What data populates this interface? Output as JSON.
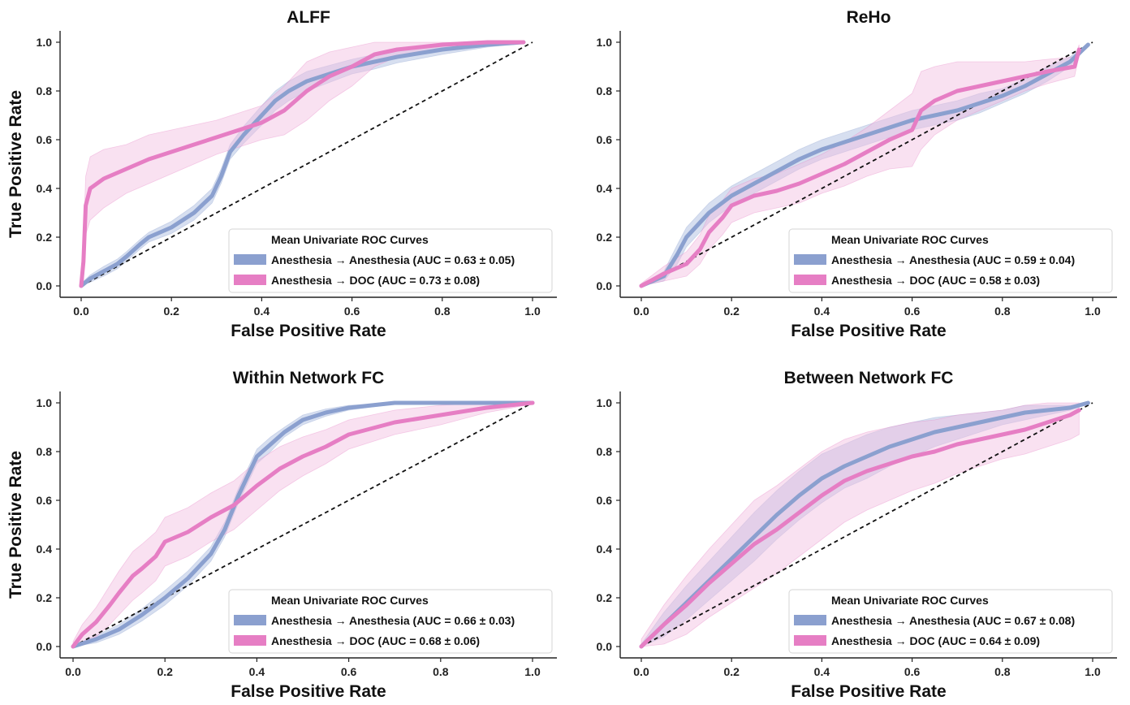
{
  "colors": {
    "anesthesia": "#8ba0cf",
    "anesthesia_band": "#b7c4e3",
    "doc": "#e67ec4",
    "doc_band": "#f2bde0",
    "diagonal": "#111111"
  },
  "chart_data": [
    {
      "type": "line",
      "title": "ALFF",
      "xlabel": "False Positive Rate",
      "ylabel": "True Positive Rate",
      "xlim": [
        0,
        1
      ],
      "ylim": [
        0,
        1
      ],
      "xticks": [
        "0.0",
        "0.2",
        "0.4",
        "0.6",
        "0.8",
        "1.0"
      ],
      "yticks": [
        "0.0",
        "0.2",
        "0.4",
        "0.6",
        "0.8",
        "1.0"
      ],
      "legend": {
        "title": "Mean Univariate ROC Curves",
        "placement": "lower-right"
      },
      "diagonal": true,
      "series": [
        {
          "name": "Anesthesia → Anesthesia (AUC = 0.63 ± 0.05)",
          "color_key": "anesthesia",
          "x": [
            0,
            0.02,
            0.05,
            0.08,
            0.1,
            0.13,
            0.15,
            0.2,
            0.25,
            0.29,
            0.31,
            0.33,
            0.36,
            0.4,
            0.43,
            0.46,
            0.5,
            0.55,
            0.6,
            0.65,
            0.7,
            0.8,
            0.9,
            0.98
          ],
          "y": [
            0,
            0.03,
            0.06,
            0.09,
            0.12,
            0.17,
            0.2,
            0.24,
            0.3,
            0.37,
            0.45,
            0.55,
            0.62,
            0.7,
            0.76,
            0.8,
            0.84,
            0.87,
            0.9,
            0.92,
            0.94,
            0.97,
            0.99,
            1.0
          ],
          "band": [
            0.01,
            0.015,
            0.02,
            0.02,
            0.02,
            0.02,
            0.02,
            0.025,
            0.03,
            0.03,
            0.03,
            0.03,
            0.035,
            0.04,
            0.04,
            0.04,
            0.04,
            0.035,
            0.03,
            0.03,
            0.025,
            0.02,
            0.01,
            0.005
          ]
        },
        {
          "name": "Anesthesia → DOC (AUC = 0.73 ± 0.08)",
          "color_key": "doc",
          "x": [
            0,
            0.005,
            0.01,
            0.02,
            0.05,
            0.1,
            0.15,
            0.2,
            0.25,
            0.3,
            0.35,
            0.4,
            0.45,
            0.5,
            0.55,
            0.6,
            0.65,
            0.7,
            0.8,
            0.9,
            0.98
          ],
          "y": [
            0,
            0.1,
            0.33,
            0.4,
            0.44,
            0.48,
            0.52,
            0.55,
            0.58,
            0.61,
            0.64,
            0.67,
            0.72,
            0.8,
            0.86,
            0.9,
            0.95,
            0.97,
            0.99,
            1.0,
            1.0
          ],
          "band": [
            0.02,
            0.08,
            0.12,
            0.13,
            0.12,
            0.1,
            0.1,
            0.09,
            0.08,
            0.07,
            0.07,
            0.07,
            0.1,
            0.12,
            0.1,
            0.08,
            0.05,
            0.03,
            0.02,
            0.01,
            0.005
          ]
        }
      ]
    },
    {
      "type": "line",
      "title": "ReHo",
      "xlabel": "False Positive Rate",
      "ylabel": "",
      "xlim": [
        0,
        1
      ],
      "ylim": [
        0,
        1
      ],
      "xticks": [
        "0.0",
        "0.2",
        "0.4",
        "0.6",
        "0.8",
        "1.0"
      ],
      "yticks": [
        "0.0",
        "0.2",
        "0.4",
        "0.6",
        "0.8",
        "1.0"
      ],
      "legend": {
        "title": "Mean Univariate ROC Curves",
        "placement": "lower-right"
      },
      "diagonal": true,
      "series": [
        {
          "name": "Anesthesia → Anesthesia (AUC = 0.59 ± 0.04)",
          "color_key": "anesthesia",
          "x": [
            0,
            0.05,
            0.08,
            0.1,
            0.15,
            0.2,
            0.25,
            0.3,
            0.35,
            0.4,
            0.45,
            0.5,
            0.55,
            0.6,
            0.65,
            0.7,
            0.75,
            0.8,
            0.85,
            0.9,
            0.95,
            0.99
          ],
          "y": [
            0,
            0.04,
            0.13,
            0.2,
            0.3,
            0.37,
            0.42,
            0.47,
            0.52,
            0.56,
            0.59,
            0.62,
            0.65,
            0.68,
            0.7,
            0.72,
            0.75,
            0.78,
            0.82,
            0.87,
            0.92,
            0.99
          ],
          "band": [
            0.005,
            0.02,
            0.04,
            0.04,
            0.04,
            0.04,
            0.04,
            0.04,
            0.04,
            0.04,
            0.04,
            0.04,
            0.04,
            0.04,
            0.04,
            0.04,
            0.04,
            0.03,
            0.03,
            0.03,
            0.02,
            0.005
          ]
        },
        {
          "name": "Anesthesia → DOC (AUC = 0.58 ± 0.03)",
          "color_key": "doc",
          "x": [
            0,
            0.05,
            0.1,
            0.13,
            0.15,
            0.18,
            0.2,
            0.25,
            0.3,
            0.35,
            0.4,
            0.45,
            0.5,
            0.55,
            0.6,
            0.62,
            0.65,
            0.7,
            0.75,
            0.8,
            0.85,
            0.9,
            0.96,
            0.97
          ],
          "y": [
            0,
            0.05,
            0.09,
            0.15,
            0.22,
            0.28,
            0.33,
            0.37,
            0.39,
            0.42,
            0.46,
            0.5,
            0.55,
            0.6,
            0.64,
            0.72,
            0.76,
            0.8,
            0.82,
            0.84,
            0.86,
            0.88,
            0.9,
            0.97
          ],
          "band": [
            0.01,
            0.03,
            0.05,
            0.06,
            0.07,
            0.07,
            0.07,
            0.07,
            0.07,
            0.08,
            0.08,
            0.09,
            0.1,
            0.12,
            0.15,
            0.16,
            0.14,
            0.12,
            0.1,
            0.08,
            0.06,
            0.05,
            0.04,
            0.02
          ]
        }
      ]
    },
    {
      "type": "line",
      "title": "Within Network FC",
      "xlabel": "False Positive Rate",
      "ylabel": "True Positive Rate",
      "xlim": [
        0,
        1
      ],
      "ylim": [
        0,
        1
      ],
      "xticks": [
        "0.0",
        "0.2",
        "0.4",
        "0.6",
        "0.8",
        "1.0"
      ],
      "yticks": [
        "0.0",
        "0.2",
        "0.4",
        "0.6",
        "0.8",
        "1.0"
      ],
      "legend": {
        "title": "Mean Univariate ROC Curves",
        "placement": "lower-right"
      },
      "diagonal": true,
      "series": [
        {
          "name": "Anesthesia → Anesthesia (AUC = 0.66 ± 0.03)",
          "color_key": "anesthesia",
          "x": [
            0,
            0.05,
            0.1,
            0.15,
            0.2,
            0.25,
            0.3,
            0.33,
            0.36,
            0.38,
            0.4,
            0.43,
            0.46,
            0.5,
            0.55,
            0.6,
            0.7,
            0.8,
            0.9,
            1.0
          ],
          "y": [
            0,
            0.03,
            0.07,
            0.13,
            0.2,
            0.28,
            0.38,
            0.48,
            0.62,
            0.7,
            0.78,
            0.83,
            0.88,
            0.93,
            0.96,
            0.98,
            1.0,
            1.0,
            1.0,
            1.0
          ],
          "band": [
            0.005,
            0.015,
            0.02,
            0.025,
            0.03,
            0.03,
            0.03,
            0.03,
            0.03,
            0.03,
            0.03,
            0.03,
            0.02,
            0.02,
            0.015,
            0.01,
            0.005,
            0.005,
            0.005,
            0.005
          ]
        },
        {
          "name": "Anesthesia → DOC (AUC = 0.68 ± 0.06)",
          "color_key": "doc",
          "x": [
            0,
            0.02,
            0.05,
            0.08,
            0.1,
            0.13,
            0.15,
            0.18,
            0.2,
            0.25,
            0.3,
            0.35,
            0.4,
            0.45,
            0.5,
            0.55,
            0.6,
            0.7,
            0.8,
            0.9,
            1.0
          ],
          "y": [
            0,
            0.05,
            0.1,
            0.17,
            0.22,
            0.29,
            0.32,
            0.37,
            0.43,
            0.47,
            0.53,
            0.58,
            0.66,
            0.73,
            0.78,
            0.82,
            0.87,
            0.92,
            0.95,
            0.98,
            1.0
          ],
          "band": [
            0.02,
            0.04,
            0.06,
            0.08,
            0.09,
            0.1,
            0.1,
            0.1,
            0.1,
            0.1,
            0.1,
            0.1,
            0.1,
            0.09,
            0.08,
            0.07,
            0.06,
            0.05,
            0.04,
            0.02,
            0.005
          ]
        }
      ]
    },
    {
      "type": "line",
      "title": "Between Network FC",
      "xlabel": "False Positive Rate",
      "ylabel": "",
      "xlim": [
        0,
        1
      ],
      "ylim": [
        0,
        1
      ],
      "xticks": [
        "0.0",
        "0.2",
        "0.4",
        "0.6",
        "0.8",
        "1.0"
      ],
      "yticks": [
        "0.0",
        "0.2",
        "0.4",
        "0.6",
        "0.8",
        "1.0"
      ],
      "legend": {
        "title": "Mean Univariate ROC Curves",
        "placement": "lower-right"
      },
      "diagonal": true,
      "series": [
        {
          "name": "Anesthesia → Anesthesia (AUC = 0.67 ± 0.08)",
          "color_key": "anesthesia",
          "x": [
            0,
            0.05,
            0.1,
            0.15,
            0.2,
            0.25,
            0.3,
            0.35,
            0.4,
            0.45,
            0.5,
            0.55,
            0.6,
            0.65,
            0.7,
            0.75,
            0.8,
            0.85,
            0.9,
            0.95,
            0.99
          ],
          "y": [
            0,
            0.09,
            0.18,
            0.27,
            0.36,
            0.45,
            0.54,
            0.62,
            0.69,
            0.74,
            0.78,
            0.82,
            0.85,
            0.88,
            0.9,
            0.92,
            0.94,
            0.96,
            0.97,
            0.98,
            1.0
          ],
          "band": [
            0.01,
            0.05,
            0.07,
            0.08,
            0.09,
            0.1,
            0.1,
            0.1,
            0.1,
            0.09,
            0.09,
            0.08,
            0.07,
            0.06,
            0.05,
            0.04,
            0.03,
            0.03,
            0.02,
            0.01,
            0.005
          ]
        },
        {
          "name": "Anesthesia → DOC (AUC = 0.64 ± 0.09)",
          "color_key": "doc",
          "x": [
            0,
            0.05,
            0.1,
            0.15,
            0.2,
            0.25,
            0.3,
            0.35,
            0.4,
            0.45,
            0.5,
            0.55,
            0.6,
            0.65,
            0.7,
            0.75,
            0.8,
            0.85,
            0.9,
            0.95,
            0.97
          ],
          "y": [
            0,
            0.09,
            0.17,
            0.26,
            0.34,
            0.42,
            0.48,
            0.55,
            0.62,
            0.68,
            0.72,
            0.75,
            0.78,
            0.8,
            0.83,
            0.85,
            0.87,
            0.89,
            0.92,
            0.95,
            0.97
          ],
          "band": [
            0.03,
            0.08,
            0.12,
            0.14,
            0.16,
            0.18,
            0.18,
            0.18,
            0.18,
            0.17,
            0.16,
            0.15,
            0.14,
            0.13,
            0.12,
            0.11,
            0.1,
            0.1,
            0.1,
            0.1,
            0.1
          ]
        }
      ]
    }
  ]
}
